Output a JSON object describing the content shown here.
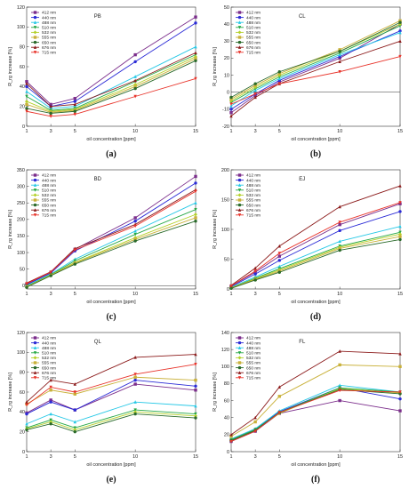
{
  "chart_data": [
    {
      "panel": "a",
      "caption": "(a)",
      "title": "PB",
      "type": "line",
      "xlabel": "oil concentration [ppm]",
      "ylabel": "R_rg increase [%]",
      "x": [
        1,
        3,
        5,
        10,
        15
      ],
      "xticks": [
        1,
        3,
        5,
        10,
        15
      ],
      "ylim": [
        0,
        120
      ],
      "yticks": [
        0,
        20,
        40,
        60,
        80,
        100,
        120
      ],
      "zero_line": false,
      "legend_position": "top-left",
      "series": [
        {
          "name": "412 nm",
          "color": "#7b2d8b",
          "values": [
            45,
            22,
            28,
            72,
            110
          ]
        },
        {
          "name": "440 nm",
          "color": "#2b2bd6",
          "values": [
            40,
            20,
            25,
            65,
            104
          ]
        },
        {
          "name": "488 nm",
          "color": "#26c8e6",
          "values": [
            35,
            18,
            20,
            50,
            80
          ]
        },
        {
          "name": "510 nm",
          "color": "#26a845",
          "values": [
            30,
            16,
            18,
            45,
            72
          ]
        },
        {
          "name": "532 nm",
          "color": "#b4d12a",
          "values": [
            25,
            15,
            17,
            42,
            70
          ]
        },
        {
          "name": "555 nm",
          "color": "#c9b13a",
          "values": [
            22,
            14,
            16,
            40,
            68
          ]
        },
        {
          "name": "650 nm",
          "color": "#2a6a2a",
          "values": [
            18,
            13,
            15,
            38,
            66
          ]
        },
        {
          "name": "676 nm",
          "color": "#8b1a1a",
          "values": [
            43,
            20,
            22,
            46,
            74
          ]
        },
        {
          "name": "715 nm",
          "color": "#e8342b",
          "values": [
            15,
            10,
            12,
            30,
            48
          ]
        }
      ]
    },
    {
      "panel": "b",
      "caption": "(b)",
      "title": "CL",
      "type": "line",
      "xlabel": "oil concentration [ppm]",
      "ylabel": "R_rg increase [%]",
      "x": [
        1,
        3,
        5,
        10,
        15
      ],
      "xticks": [
        1,
        3,
        5,
        10,
        15
      ],
      "ylim": [
        -20,
        50
      ],
      "yticks": [
        -20,
        -10,
        0,
        10,
        20,
        30,
        40,
        50
      ],
      "zero_line": true,
      "legend_position": "top-left",
      "series": [
        {
          "name": "412 nm",
          "color": "#7b2d8b",
          "values": [
            -12,
            -2,
            6,
            20,
            40
          ]
        },
        {
          "name": "440 nm",
          "color": "#2b2bd6",
          "values": [
            -10,
            -1,
            7,
            21,
            36
          ]
        },
        {
          "name": "488 nm",
          "color": "#26c8e6",
          "values": [
            -8,
            1,
            8,
            22,
            35
          ]
        },
        {
          "name": "510 nm",
          "color": "#26a845",
          "values": [
            -6,
            2,
            9,
            23,
            39
          ]
        },
        {
          "name": "532 nm",
          "color": "#b4d12a",
          "values": [
            -5,
            3,
            10,
            24,
            40
          ]
        },
        {
          "name": "555 nm",
          "color": "#c9b13a",
          "values": [
            -4,
            4,
            11,
            25,
            42
          ]
        },
        {
          "name": "650 nm",
          "color": "#2a6a2a",
          "values": [
            -3,
            5,
            12,
            24,
            41
          ]
        },
        {
          "name": "676 nm",
          "color": "#8b1a1a",
          "values": [
            -14,
            -3,
            5,
            18,
            30
          ]
        },
        {
          "name": "715 nm",
          "color": "#e8342b",
          "values": [
            -7,
            -1,
            5,
            12,
            21
          ]
        }
      ]
    },
    {
      "panel": "c",
      "caption": "(c)",
      "title": "BD",
      "type": "line",
      "xlabel": "oil concentration [ppm]",
      "ylabel": "R_rg increase [%]",
      "x": [
        1,
        3,
        5,
        10,
        15
      ],
      "xticks": [
        1,
        3,
        5,
        10,
        15
      ],
      "ylim": [
        -10,
        350
      ],
      "yticks": [
        0,
        50,
        100,
        150,
        200,
        250,
        300,
        350
      ],
      "zero_line": true,
      "legend_position": "top-left",
      "series": [
        {
          "name": "412 nm",
          "color": "#7b2d8b",
          "values": [
            5,
            40,
            110,
            205,
            330
          ]
        },
        {
          "name": "440 nm",
          "color": "#2b2bd6",
          "values": [
            3,
            38,
            105,
            195,
            310
          ]
        },
        {
          "name": "488 nm",
          "color": "#26c8e6",
          "values": [
            0,
            35,
            80,
            165,
            250
          ]
        },
        {
          "name": "510 nm",
          "color": "#26a845",
          "values": [
            -2,
            33,
            75,
            155,
            230
          ]
        },
        {
          "name": "532 nm",
          "color": "#b4d12a",
          "values": [
            -3,
            32,
            70,
            145,
            215
          ]
        },
        {
          "name": "555 nm",
          "color": "#c9b13a",
          "values": [
            -4,
            31,
            68,
            140,
            205
          ]
        },
        {
          "name": "650 nm",
          "color": "#2a6a2a",
          "values": [
            -5,
            30,
            65,
            135,
            195
          ]
        },
        {
          "name": "676 nm",
          "color": "#8b1a1a",
          "values": [
            8,
            42,
            112,
            185,
            290
          ]
        },
        {
          "name": "715 nm",
          "color": "#e8342b",
          "values": [
            6,
            41,
            108,
            180,
            285
          ]
        }
      ]
    },
    {
      "panel": "d",
      "caption": "(d)",
      "title": "EJ",
      "type": "line",
      "xlabel": "oil concentration [ppm]",
      "ylabel": "R_rg increase [%]",
      "x": [
        1,
        3,
        5,
        10,
        15
      ],
      "xticks": [
        1,
        3,
        5,
        10,
        15
      ],
      "ylim": [
        0,
        200
      ],
      "yticks": [
        0,
        50,
        100,
        150,
        200
      ],
      "zero_line": false,
      "legend_position": "top-left",
      "series": [
        {
          "name": "412 nm",
          "color": "#7b2d8b",
          "values": [
            5,
            28,
            55,
            108,
            143
          ]
        },
        {
          "name": "440 nm",
          "color": "#2b2bd6",
          "values": [
            4,
            25,
            48,
            98,
            130
          ]
        },
        {
          "name": "488 nm",
          "color": "#26c8e6",
          "values": [
            3,
            20,
            38,
            80,
            105
          ]
        },
        {
          "name": "510 nm",
          "color": "#26a845",
          "values": [
            2,
            18,
            34,
            72,
            95
          ]
        },
        {
          "name": "532 nm",
          "color": "#b4d12a",
          "values": [
            2,
            17,
            32,
            70,
            92
          ]
        },
        {
          "name": "555 nm",
          "color": "#c9b13a",
          "values": [
            2,
            16,
            30,
            68,
            88
          ]
        },
        {
          "name": "650 nm",
          "color": "#2a6a2a",
          "values": [
            1,
            15,
            28,
            65,
            83
          ]
        },
        {
          "name": "676 nm",
          "color": "#8b1a1a",
          "values": [
            6,
            35,
            72,
            138,
            173
          ]
        },
        {
          "name": "715 nm",
          "color": "#e8342b",
          "values": [
            5,
            30,
            60,
            112,
            145
          ]
        }
      ]
    },
    {
      "panel": "e",
      "caption": "(e)",
      "title": "QL",
      "type": "line",
      "xlabel": "oil concentration [ppm]",
      "ylabel": "R_rg increase [%]",
      "x": [
        1,
        3,
        5,
        10,
        15
      ],
      "xticks": [
        1,
        3,
        5,
        10,
        15
      ],
      "ylim": [
        0,
        120
      ],
      "yticks": [
        0,
        20,
        40,
        60,
        80,
        100,
        120
      ],
      "zero_line": false,
      "legend_position": "top-left",
      "series": [
        {
          "name": "412 nm",
          "color": "#7b2d8b",
          "values": [
            39,
            52,
            42,
            68,
            62
          ]
        },
        {
          "name": "440 nm",
          "color": "#2b2bd6",
          "values": [
            38,
            50,
            42,
            72,
            66
          ]
        },
        {
          "name": "488 nm",
          "color": "#26c8e6",
          "values": [
            28,
            38,
            30,
            50,
            46
          ]
        },
        {
          "name": "510 nm",
          "color": "#26a845",
          "values": [
            24,
            32,
            24,
            42,
            38
          ]
        },
        {
          "name": "532 nm",
          "color": "#b4d12a",
          "values": [
            23,
            30,
            22,
            40,
            36
          ]
        },
        {
          "name": "555 nm",
          "color": "#c9b13a",
          "values": [
            48,
            62,
            58,
            75,
            72
          ]
        },
        {
          "name": "650 nm",
          "color": "#2a6a2a",
          "values": [
            22,
            28,
            20,
            38,
            34
          ]
        },
        {
          "name": "676 nm",
          "color": "#8b1a1a",
          "values": [
            50,
            72,
            68,
            95,
            98
          ]
        },
        {
          "name": "715 nm",
          "color": "#e8342b",
          "values": [
            47,
            65,
            60,
            78,
            88
          ]
        }
      ]
    },
    {
      "panel": "f",
      "caption": "(f)",
      "title": "FL",
      "type": "line",
      "xlabel": "oil concentration [ppm]",
      "ylabel": "R_rg increase [%]",
      "x": [
        1,
        3,
        5,
        10,
        15
      ],
      "xticks": [
        1,
        3,
        5,
        10,
        15
      ],
      "ylim": [
        0,
        140
      ],
      "yticks": [
        0,
        20,
        40,
        60,
        80,
        100,
        120,
        140
      ],
      "zero_line": false,
      "legend_position": "top-left",
      "series": [
        {
          "name": "412 nm",
          "color": "#7b2d8b",
          "values": [
            12,
            24,
            45,
            60,
            48
          ]
        },
        {
          "name": "440 nm",
          "color": "#2b2bd6",
          "values": [
            14,
            26,
            47,
            75,
            62
          ]
        },
        {
          "name": "488 nm",
          "color": "#26c8e6",
          "values": [
            15,
            27,
            48,
            78,
            70
          ]
        },
        {
          "name": "510 nm",
          "color": "#26a845",
          "values": [
            14,
            26,
            46,
            75,
            70
          ]
        },
        {
          "name": "532 nm",
          "color": "#b4d12a",
          "values": [
            13,
            25,
            45,
            74,
            69
          ]
        },
        {
          "name": "555 nm",
          "color": "#c9b13a",
          "values": [
            18,
            35,
            65,
            102,
            100
          ]
        },
        {
          "name": "650 nm",
          "color": "#2a6a2a",
          "values": [
            13,
            25,
            46,
            73,
            68
          ]
        },
        {
          "name": "676 nm",
          "color": "#8b1a1a",
          "values": [
            20,
            40,
            76,
            118,
            115
          ]
        },
        {
          "name": "715 nm",
          "color": "#e8342b",
          "values": [
            12,
            24,
            46,
            72,
            70
          ]
        }
      ]
    }
  ]
}
